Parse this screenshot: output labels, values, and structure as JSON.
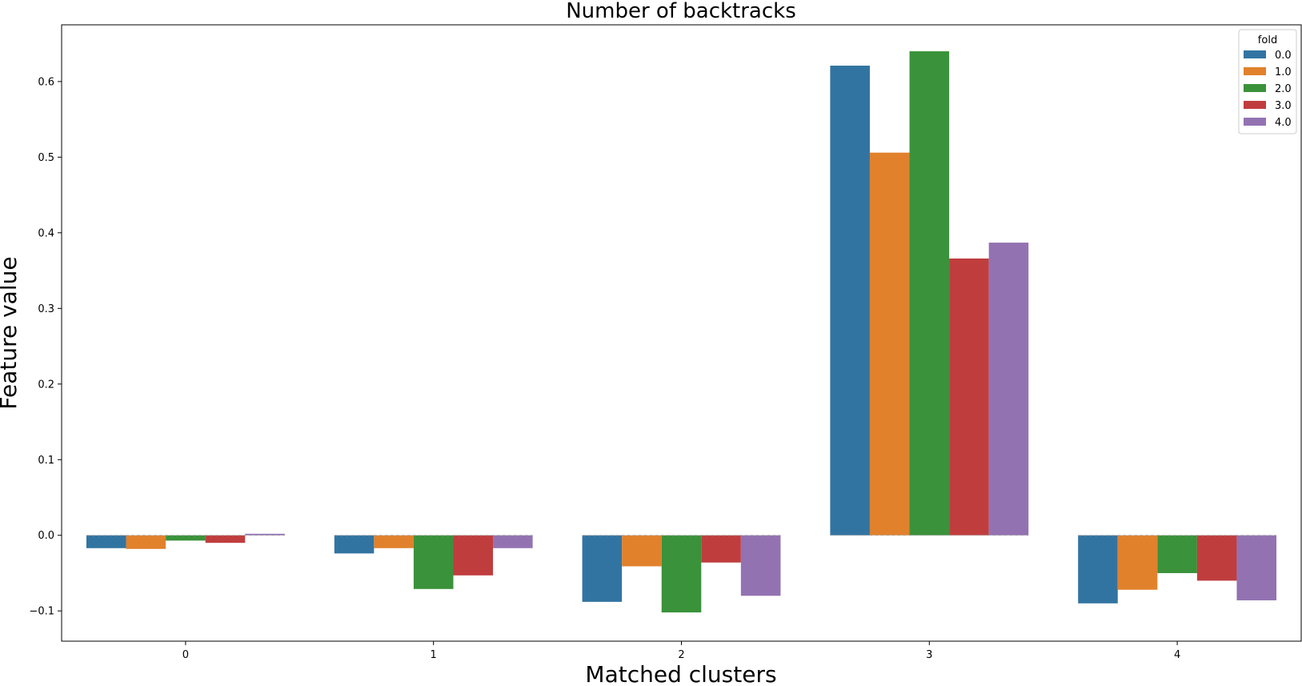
{
  "chart_data": {
    "type": "bar",
    "title": "Number of backtracks",
    "xlabel": "Matched clusters",
    "ylabel": "Feature value",
    "categories": [
      "0",
      "1",
      "2",
      "3",
      "4"
    ],
    "ylim": [
      -0.14,
      0.675
    ],
    "yticks": [
      -0.1,
      0.0,
      0.1,
      0.2,
      0.3,
      0.4,
      0.5,
      0.6
    ],
    "ytick_labels": [
      "−0.1",
      "0.0",
      "0.1",
      "0.2",
      "0.3",
      "0.4",
      "0.5",
      "0.6"
    ],
    "grid": false,
    "legend": {
      "title": "fold",
      "position": "top-right"
    },
    "series": [
      {
        "name": "0.0",
        "color": "#3274a1",
        "values": [
          -0.017,
          -0.024,
          -0.088,
          0.621,
          -0.09
        ]
      },
      {
        "name": "1.0",
        "color": "#e1812c",
        "values": [
          -0.018,
          -0.017,
          -0.041,
          0.506,
          -0.072
        ]
      },
      {
        "name": "2.0",
        "color": "#3a923a",
        "values": [
          -0.007,
          -0.071,
          -0.102,
          0.64,
          -0.05
        ]
      },
      {
        "name": "3.0",
        "color": "#c03d3e",
        "values": [
          -0.01,
          -0.053,
          -0.036,
          0.366,
          -0.06
        ]
      },
      {
        "name": "4.0",
        "color": "#9372b2",
        "values": [
          0.002,
          -0.017,
          -0.08,
          0.387,
          -0.086
        ]
      }
    ]
  }
}
